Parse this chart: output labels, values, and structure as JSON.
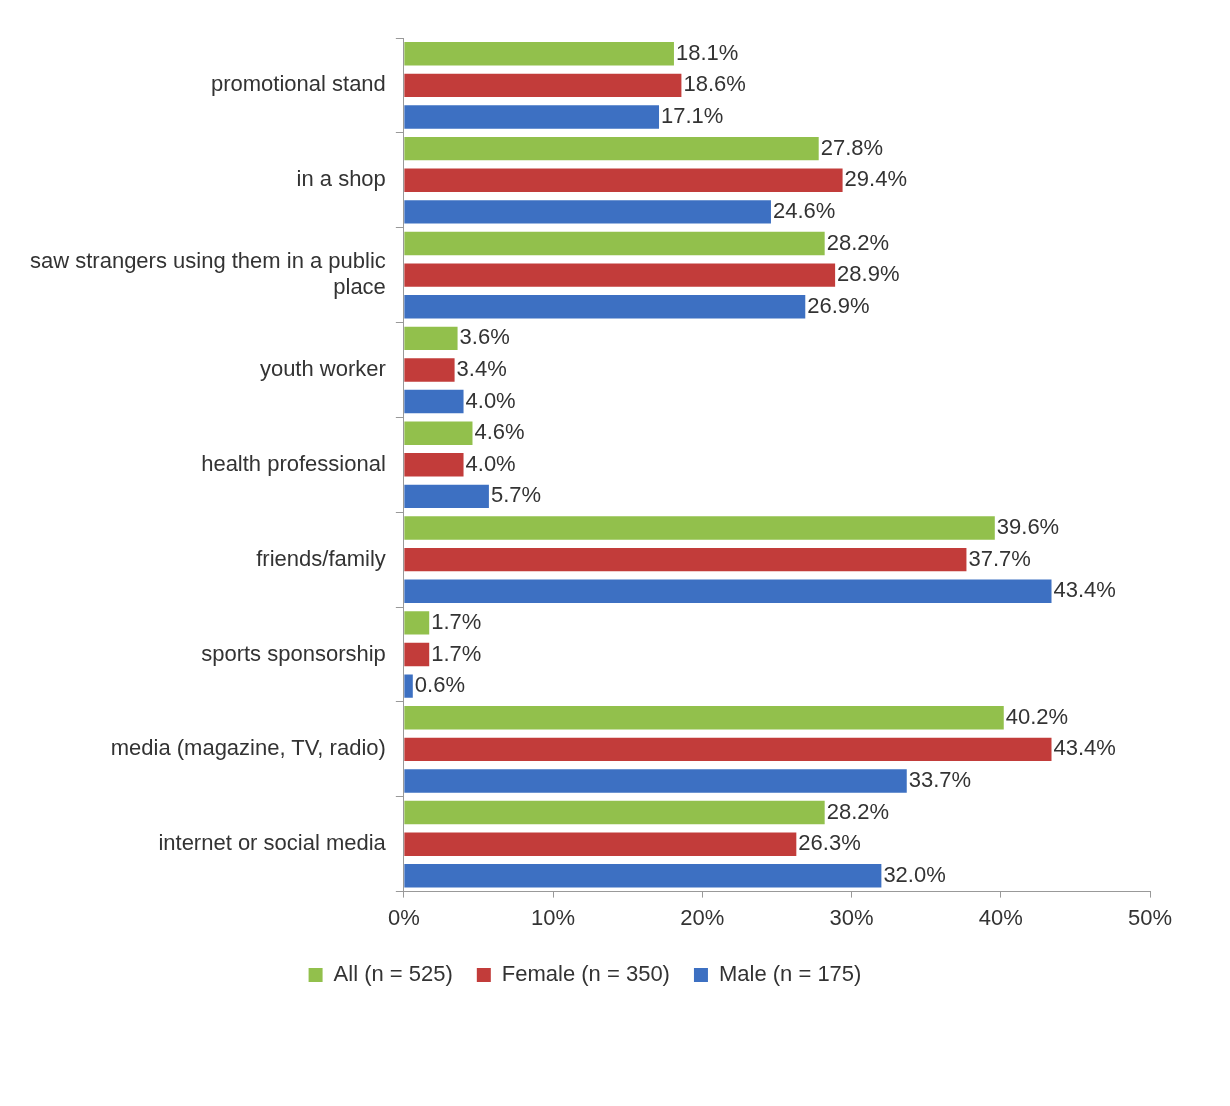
{
  "chart_data": {
    "type": "bar",
    "orientation": "horizontal",
    "categories": [
      "promotional stand",
      "in a shop",
      "saw strangers using them in a public place",
      "youth worker",
      "health professional",
      "friends/family",
      "sports sponsorship",
      "media (magazine, TV, radio)",
      "internet or social media"
    ],
    "series": [
      {
        "name": "All (n = 525)",
        "color": "#92c04c",
        "values": [
          18.1,
          27.8,
          28.2,
          3.6,
          4.6,
          39.6,
          1.7,
          40.2,
          28.2
        ],
        "value_labels": [
          "18.1%",
          "27.8%",
          "28.2%",
          "3.6%",
          "4.6%",
          "39.6%",
          "1.7%",
          "40.2%",
          "28.2%"
        ]
      },
      {
        "name": "Female (n = 350)",
        "color": "#c23c3a",
        "values": [
          18.6,
          29.4,
          28.9,
          3.4,
          4.0,
          37.7,
          1.7,
          43.4,
          26.3
        ],
        "value_labels": [
          "18.6%",
          "29.4%",
          "28.9%",
          "3.4%",
          "4.0%",
          "37.7%",
          "1.7%",
          "43.4%",
          "26.3%"
        ]
      },
      {
        "name": "Male (n = 175)",
        "color": "#3d70c2",
        "values": [
          17.1,
          24.6,
          26.9,
          4.0,
          5.7,
          43.4,
          0.6,
          33.7,
          32.0
        ],
        "value_labels": [
          "17.1%",
          "24.6%",
          "26.9%",
          "4.0%",
          "5.7%",
          "43.4%",
          "0.6%",
          "33.7%",
          "32.0%"
        ]
      }
    ],
    "xlim": [
      0,
      50
    ],
    "xticks": [
      {
        "value": 0,
        "label": "0%"
      },
      {
        "value": 10,
        "label": "10%"
      },
      {
        "value": 20,
        "label": "20%"
      },
      {
        "value": 30,
        "label": "30%"
      },
      {
        "value": 40,
        "label": "40%"
      },
      {
        "value": 50,
        "label": "50%"
      }
    ],
    "grid": false,
    "legend": "bottom"
  }
}
